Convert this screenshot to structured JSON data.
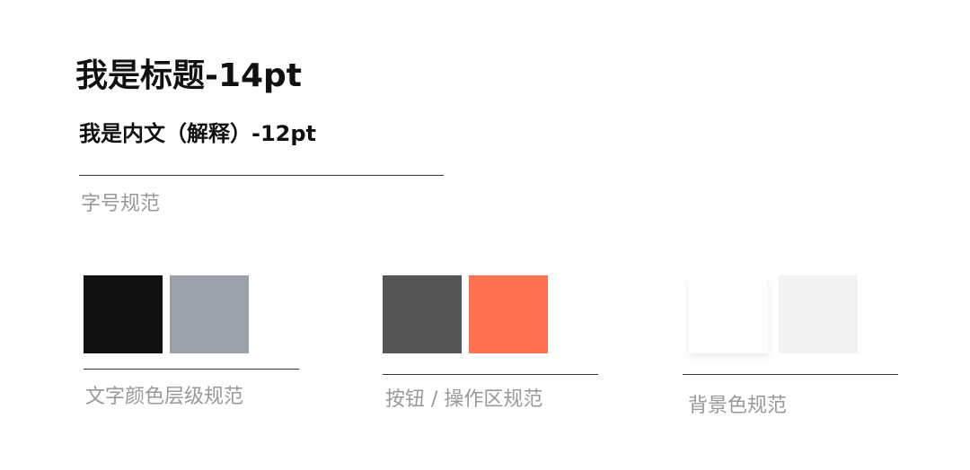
{
  "typography": {
    "title": "我是标题-14pt",
    "body": "我是内文（解释）-12pt",
    "caption": "字号规范"
  },
  "palettes": {
    "text": {
      "caption": "文字颜色层级规范",
      "colors": [
        "#121212",
        "#9ca1ab"
      ]
    },
    "button": {
      "caption": "按钮 / 操作区规范",
      "colors": [
        "#555555",
        "#ff7352"
      ]
    },
    "background": {
      "caption": "背景色规范",
      "colors": [
        "#fdfdfd",
        "#f3f3f3"
      ]
    }
  }
}
